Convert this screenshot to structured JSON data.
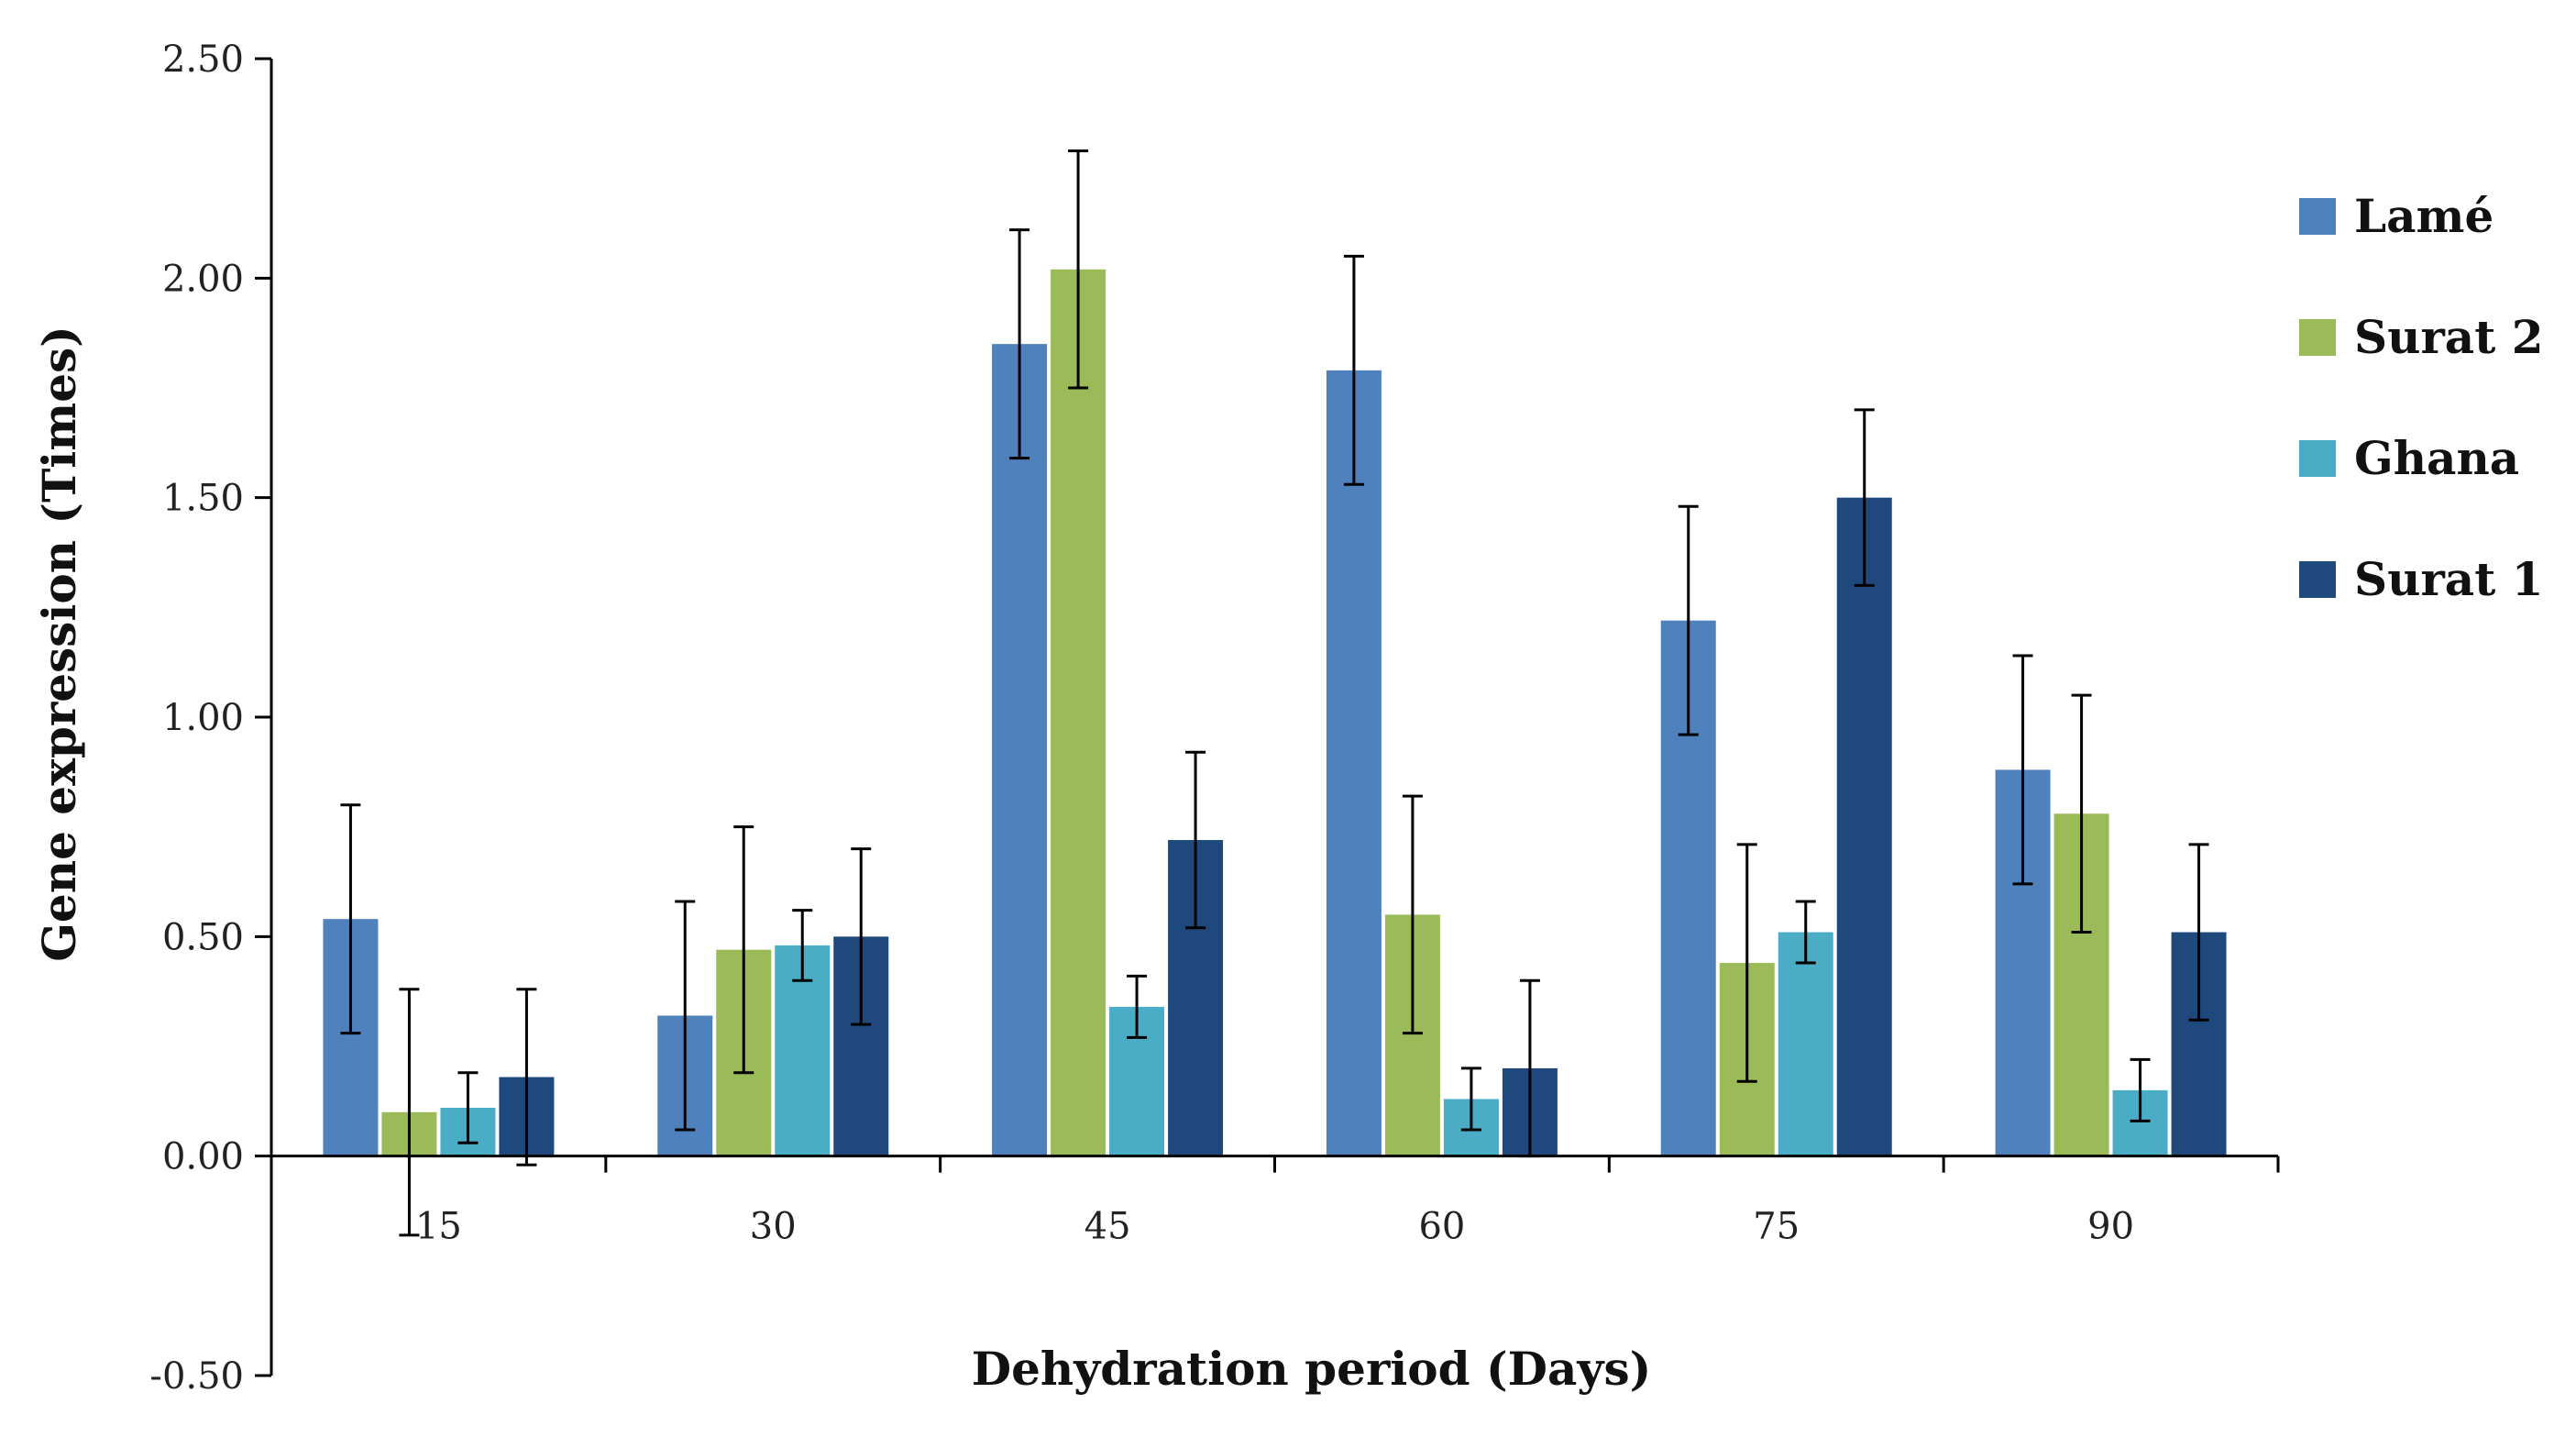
{
  "chart_data": {
    "type": "bar",
    "title": "",
    "xlabel": "Dehydration period (Days)",
    "ylabel": "Gene expression (Times)",
    "categories": [
      "15",
      "30",
      "45",
      "60",
      "75",
      "90"
    ],
    "ylim": [
      -0.5,
      2.5
    ],
    "yticks": [
      "-0.50",
      "0.00",
      "0.50",
      "1.00",
      "1.50",
      "2.00",
      "2.50"
    ],
    "legend_position": "right",
    "series": [
      {
        "name": "Lamé",
        "color": "#4F81BD",
        "values": [
          0.54,
          0.32,
          1.85,
          1.79,
          1.22,
          0.88
        ],
        "errors": [
          0.26,
          0.26,
          0.26,
          0.26,
          0.26,
          0.26
        ]
      },
      {
        "name": "Surat 2",
        "color": "#9BBB59",
        "values": [
          0.1,
          0.47,
          2.02,
          0.55,
          0.44,
          0.78
        ],
        "errors": [
          0.28,
          0.28,
          0.27,
          0.27,
          0.27,
          0.27
        ]
      },
      {
        "name": "Ghana",
        "color": "#4BACC6",
        "values": [
          0.11,
          0.48,
          0.34,
          0.13,
          0.51,
          0.15
        ],
        "errors": [
          0.08,
          0.08,
          0.07,
          0.07,
          0.07,
          0.07
        ]
      },
      {
        "name": "Surat 1",
        "color": "#1F497D",
        "values": [
          0.18,
          0.5,
          0.72,
          0.2,
          1.5,
          0.51
        ],
        "errors": [
          0.2,
          0.2,
          0.2,
          0.2,
          0.2,
          0.2
        ]
      }
    ]
  }
}
